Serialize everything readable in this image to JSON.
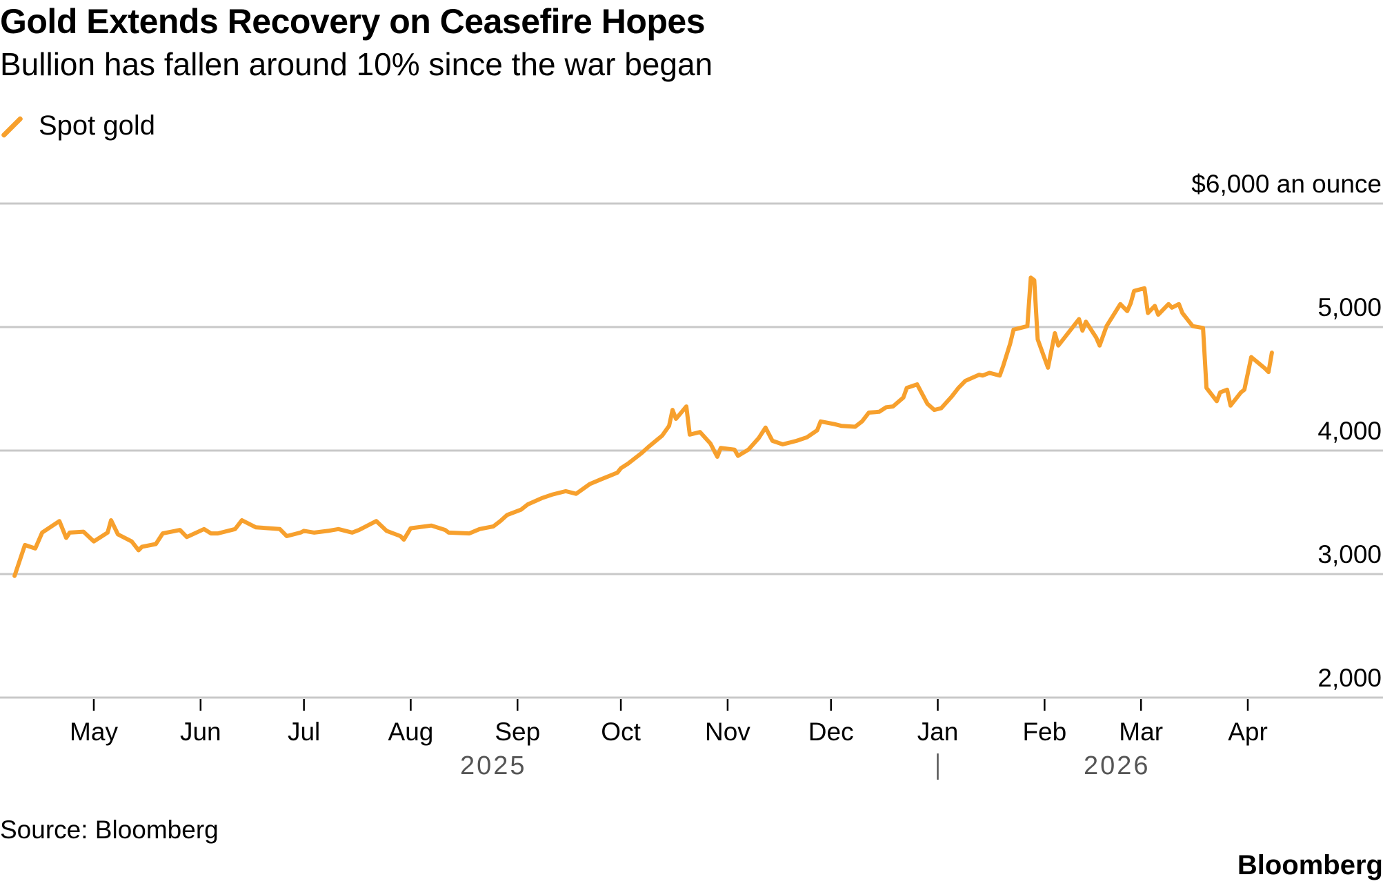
{
  "title": "Gold Extends Recovery on Ceasefire Hopes",
  "subtitle": "Bullion has fallen around 10% since the war began",
  "source": "Source: Bloomberg",
  "brand": "Bloomberg",
  "chart_data": {
    "type": "line",
    "title": "Gold Extends Recovery on Ceasefire Hopes",
    "subtitle": "Bullion has fallen around 10% since the war began",
    "ylabel": "$6,000 an ounce",
    "ylim": [
      2000,
      6000
    ],
    "yticks": [
      {
        "value": 6000,
        "label": "$6,000 an ounce"
      },
      {
        "value": 5000,
        "label": "5,000"
      },
      {
        "value": 4000,
        "label": "4,000"
      },
      {
        "value": 3000,
        "label": "3,000"
      },
      {
        "value": 2000,
        "label": "2,000"
      }
    ],
    "xticks": [
      {
        "date": "2025-05-01",
        "label": "May"
      },
      {
        "date": "2025-06-01",
        "label": "Jun"
      },
      {
        "date": "2025-07-01",
        "label": "Jul"
      },
      {
        "date": "2025-08-01",
        "label": "Aug"
      },
      {
        "date": "2025-09-01",
        "label": "Sep"
      },
      {
        "date": "2025-10-01",
        "label": "Oct"
      },
      {
        "date": "2025-11-01",
        "label": "Nov"
      },
      {
        "date": "2025-12-01",
        "label": "Dec"
      },
      {
        "date": "2026-01-01",
        "label": "Jan"
      },
      {
        "date": "2026-02-01",
        "label": "Feb"
      },
      {
        "date": "2026-03-01",
        "label": "Mar"
      },
      {
        "date": "2026-04-01",
        "label": "Apr"
      }
    ],
    "year_labels": [
      {
        "label": "2025",
        "date": "2025-08-25"
      },
      {
        "label": "2026",
        "date": "2026-02-22"
      }
    ],
    "year_divider": "2026-01-01",
    "grid": true,
    "legend": "top-left",
    "series": [
      {
        "name": "Spot gold",
        "color": "#f7a02d",
        "points": [
          [
            "2025-04-08",
            2985
          ],
          [
            "2025-04-11",
            3235
          ],
          [
            "2025-04-14",
            3207
          ],
          [
            "2025-04-16",
            3336
          ],
          [
            "2025-04-21",
            3429
          ],
          [
            "2025-04-23",
            3293
          ],
          [
            "2025-04-24",
            3336
          ],
          [
            "2025-04-28",
            3343
          ],
          [
            "2025-05-01",
            3264
          ],
          [
            "2025-05-05",
            3336
          ],
          [
            "2025-05-06",
            3436
          ],
          [
            "2025-05-08",
            3321
          ],
          [
            "2025-05-12",
            3264
          ],
          [
            "2025-05-14",
            3193
          ],
          [
            "2025-05-15",
            3221
          ],
          [
            "2025-05-19",
            3243
          ],
          [
            "2025-05-21",
            3329
          ],
          [
            "2025-05-26",
            3357
          ],
          [
            "2025-05-28",
            3300
          ],
          [
            "2025-06-02",
            3364
          ],
          [
            "2025-06-04",
            3329
          ],
          [
            "2025-06-06",
            3329
          ],
          [
            "2025-06-11",
            3364
          ],
          [
            "2025-06-13",
            3436
          ],
          [
            "2025-06-17",
            3379
          ],
          [
            "2025-06-24",
            3364
          ],
          [
            "2025-06-26",
            3307
          ],
          [
            "2025-06-30",
            3336
          ],
          [
            "2025-07-01",
            3350
          ],
          [
            "2025-07-04",
            3336
          ],
          [
            "2025-07-08",
            3350
          ],
          [
            "2025-07-11",
            3364
          ],
          [
            "2025-07-15",
            3336
          ],
          [
            "2025-07-17",
            3357
          ],
          [
            "2025-07-22",
            3429
          ],
          [
            "2025-07-25",
            3350
          ],
          [
            "2025-07-29",
            3307
          ],
          [
            "2025-07-30",
            3279
          ],
          [
            "2025-08-01",
            3371
          ],
          [
            "2025-08-07",
            3393
          ],
          [
            "2025-08-11",
            3357
          ],
          [
            "2025-08-12",
            3336
          ],
          [
            "2025-08-18",
            3329
          ],
          [
            "2025-08-21",
            3364
          ],
          [
            "2025-08-25",
            3386
          ],
          [
            "2025-08-27",
            3429
          ],
          [
            "2025-08-29",
            3479
          ],
          [
            "2025-09-02",
            3521
          ],
          [
            "2025-09-04",
            3564
          ],
          [
            "2025-09-08",
            3614
          ],
          [
            "2025-09-11",
            3643
          ],
          [
            "2025-09-15",
            3671
          ],
          [
            "2025-09-18",
            3650
          ],
          [
            "2025-09-22",
            3729
          ],
          [
            "2025-09-25",
            3764
          ],
          [
            "2025-09-30",
            3821
          ],
          [
            "2025-10-01",
            3857
          ],
          [
            "2025-10-03",
            3893
          ],
          [
            "2025-10-07",
            3979
          ],
          [
            "2025-10-09",
            4029
          ],
          [
            "2025-10-13",
            4121
          ],
          [
            "2025-10-15",
            4200
          ],
          [
            "2025-10-16",
            4329
          ],
          [
            "2025-10-17",
            4257
          ],
          [
            "2025-10-20",
            4357
          ],
          [
            "2025-10-21",
            4129
          ],
          [
            "2025-10-24",
            4150
          ],
          [
            "2025-10-27",
            4057
          ],
          [
            "2025-10-29",
            3950
          ],
          [
            "2025-10-30",
            4021
          ],
          [
            "2025-11-03",
            4007
          ],
          [
            "2025-11-04",
            3957
          ],
          [
            "2025-11-07",
            4007
          ],
          [
            "2025-11-10",
            4100
          ],
          [
            "2025-11-12",
            4186
          ],
          [
            "2025-11-14",
            4079
          ],
          [
            "2025-11-17",
            4050
          ],
          [
            "2025-11-21",
            4079
          ],
          [
            "2025-11-24",
            4107
          ],
          [
            "2025-11-27",
            4164
          ],
          [
            "2025-11-28",
            4236
          ],
          [
            "2025-12-02",
            4214
          ],
          [
            "2025-12-04",
            4200
          ],
          [
            "2025-12-08",
            4193
          ],
          [
            "2025-12-10",
            4236
          ],
          [
            "2025-12-12",
            4307
          ],
          [
            "2025-12-15",
            4314
          ],
          [
            "2025-12-17",
            4350
          ],
          [
            "2025-12-19",
            4357
          ],
          [
            "2025-12-22",
            4429
          ],
          [
            "2025-12-23",
            4507
          ],
          [
            "2025-12-26",
            4536
          ],
          [
            "2025-12-29",
            4379
          ],
          [
            "2025-12-31",
            4329
          ],
          [
            "2026-01-02",
            4343
          ],
          [
            "2026-01-05",
            4436
          ],
          [
            "2026-01-07",
            4507
          ],
          [
            "2026-01-09",
            4564
          ],
          [
            "2026-01-13",
            4614
          ],
          [
            "2026-01-14",
            4607
          ],
          [
            "2026-01-16",
            4629
          ],
          [
            "2026-01-19",
            4607
          ],
          [
            "2026-01-20",
            4686
          ],
          [
            "2026-01-22",
            4864
          ],
          [
            "2026-01-23",
            4979
          ],
          [
            "2026-01-27",
            5007
          ],
          [
            "2026-01-28",
            5400
          ],
          [
            "2026-01-29",
            5379
          ],
          [
            "2026-01-30",
            4900
          ],
          [
            "2026-02-02",
            4671
          ],
          [
            "2026-02-04",
            4950
          ],
          [
            "2026-02-05",
            4850
          ],
          [
            "2026-02-09",
            4993
          ],
          [
            "2026-02-11",
            5064
          ],
          [
            "2026-02-12",
            4971
          ],
          [
            "2026-02-13",
            5043
          ],
          [
            "2026-02-16",
            4914
          ],
          [
            "2026-02-17",
            4850
          ],
          [
            "2026-02-19",
            5007
          ],
          [
            "2026-02-23",
            5186
          ],
          [
            "2026-02-25",
            5129
          ],
          [
            "2026-02-26",
            5193
          ],
          [
            "2026-02-27",
            5293
          ],
          [
            "2026-03-02",
            5314
          ],
          [
            "2026-03-03",
            5114
          ],
          [
            "2026-03-05",
            5171
          ],
          [
            "2026-03-06",
            5100
          ],
          [
            "2026-03-09",
            5186
          ],
          [
            "2026-03-10",
            5157
          ],
          [
            "2026-03-12",
            5186
          ],
          [
            "2026-03-13",
            5114
          ],
          [
            "2026-03-16",
            5007
          ],
          [
            "2026-03-19",
            4993
          ],
          [
            "2026-03-20",
            4507
          ],
          [
            "2026-03-23",
            4400
          ],
          [
            "2026-03-24",
            4471
          ],
          [
            "2026-03-26",
            4493
          ],
          [
            "2026-03-27",
            4364
          ],
          [
            "2026-03-30",
            4471
          ],
          [
            "2026-03-31",
            4493
          ],
          [
            "2026-04-02",
            4757
          ],
          [
            "2026-04-06",
            4664
          ],
          [
            "2026-04-07",
            4636
          ],
          [
            "2026-04-08",
            4793
          ]
        ]
      }
    ]
  }
}
